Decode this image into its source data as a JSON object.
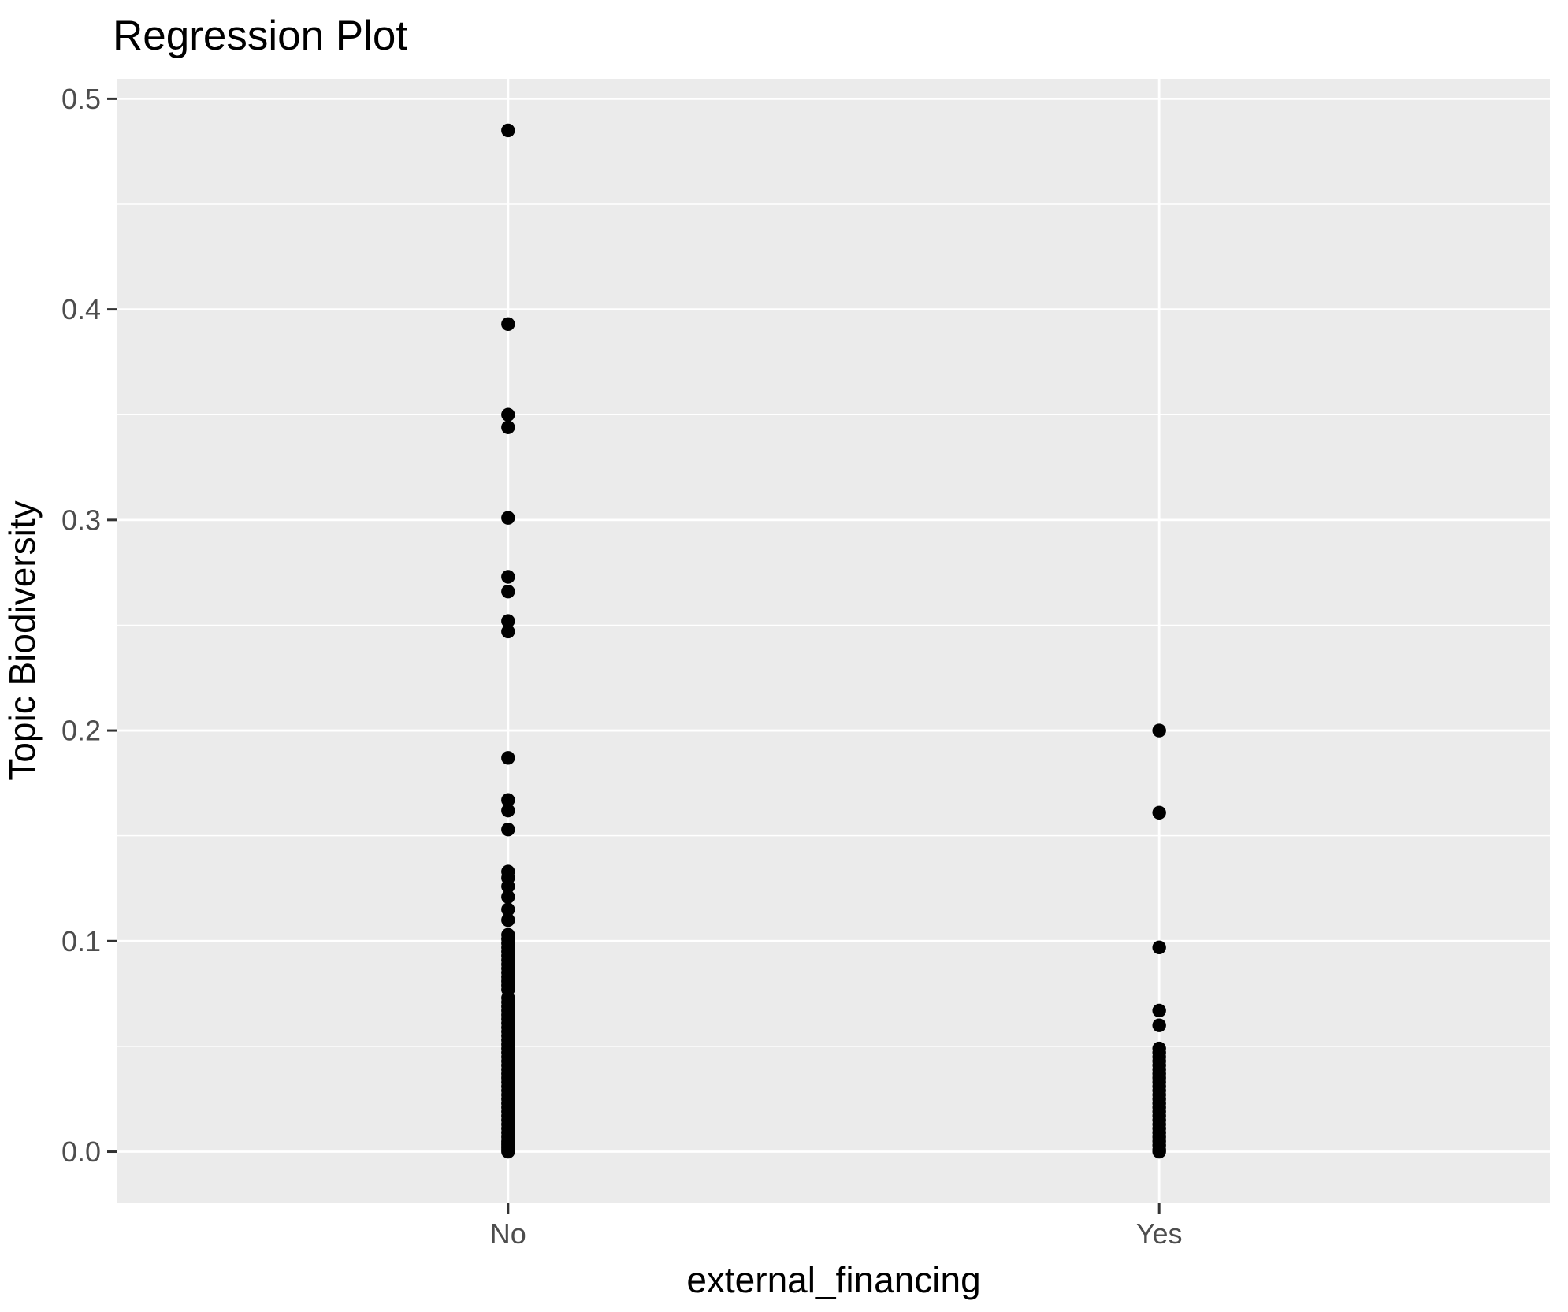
{
  "title": "Regression Plot",
  "chart_data": {
    "type": "scatter",
    "title": "Regression Plot",
    "xlabel": "external_financing",
    "ylabel": "Topic Biodiversity",
    "categories": [
      "No",
      "Yes"
    ],
    "y_tick_labels": [
      "0.0",
      "0.1",
      "0.2",
      "0.3",
      "0.4",
      "0.5"
    ],
    "y_tick_values": [
      0.0,
      0.1,
      0.2,
      0.3,
      0.4,
      0.5
    ],
    "y_minor_values": [
      0.05,
      0.15,
      0.25,
      0.35,
      0.45
    ],
    "ylim": [
      -0.0245,
      0.5095
    ],
    "grid": "major and minor horizontal white gridlines, major vertical gridlines at categories",
    "legend": "none",
    "panel_bg": "#EBEBEB",
    "grid_color": "#FFFFFF",
    "point_color": "#000000",
    "tick_label_color": "#4D4D4D",
    "tick_mark_color": "#333333",
    "series": [
      {
        "name": "No",
        "values": [
          0.485,
          0.393,
          0.35,
          0.344,
          0.301,
          0.273,
          0.266,
          0.252,
          0.247,
          0.187,
          0.167,
          0.162,
          0.153,
          0.133,
          0.13,
          0.126,
          0.121,
          0.115,
          0.11,
          0.103,
          0.101,
          0.099,
          0.097,
          0.095,
          0.093,
          0.091,
          0.089,
          0.087,
          0.085,
          0.083,
          0.081,
          0.079,
          0.077,
          0.073,
          0.071,
          0.069,
          0.067,
          0.065,
          0.063,
          0.061,
          0.059,
          0.057,
          0.055,
          0.053,
          0.051,
          0.049,
          0.047,
          0.045,
          0.043,
          0.041,
          0.039,
          0.037,
          0.035,
          0.033,
          0.031,
          0.029,
          0.027,
          0.025,
          0.023,
          0.021,
          0.019,
          0.017,
          0.015,
          0.013,
          0.011,
          0.009,
          0.007,
          0.005,
          0.004,
          0.003,
          0.002,
          0.001,
          0.0
        ]
      },
      {
        "name": "Yes",
        "values": [
          0.2,
          0.161,
          0.097,
          0.067,
          0.06,
          0.049,
          0.047,
          0.045,
          0.043,
          0.041,
          0.039,
          0.037,
          0.035,
          0.033,
          0.031,
          0.029,
          0.027,
          0.025,
          0.023,
          0.021,
          0.019,
          0.017,
          0.015,
          0.013,
          0.011,
          0.009,
          0.007,
          0.005,
          0.003,
          0.001,
          0.0
        ]
      }
    ]
  }
}
